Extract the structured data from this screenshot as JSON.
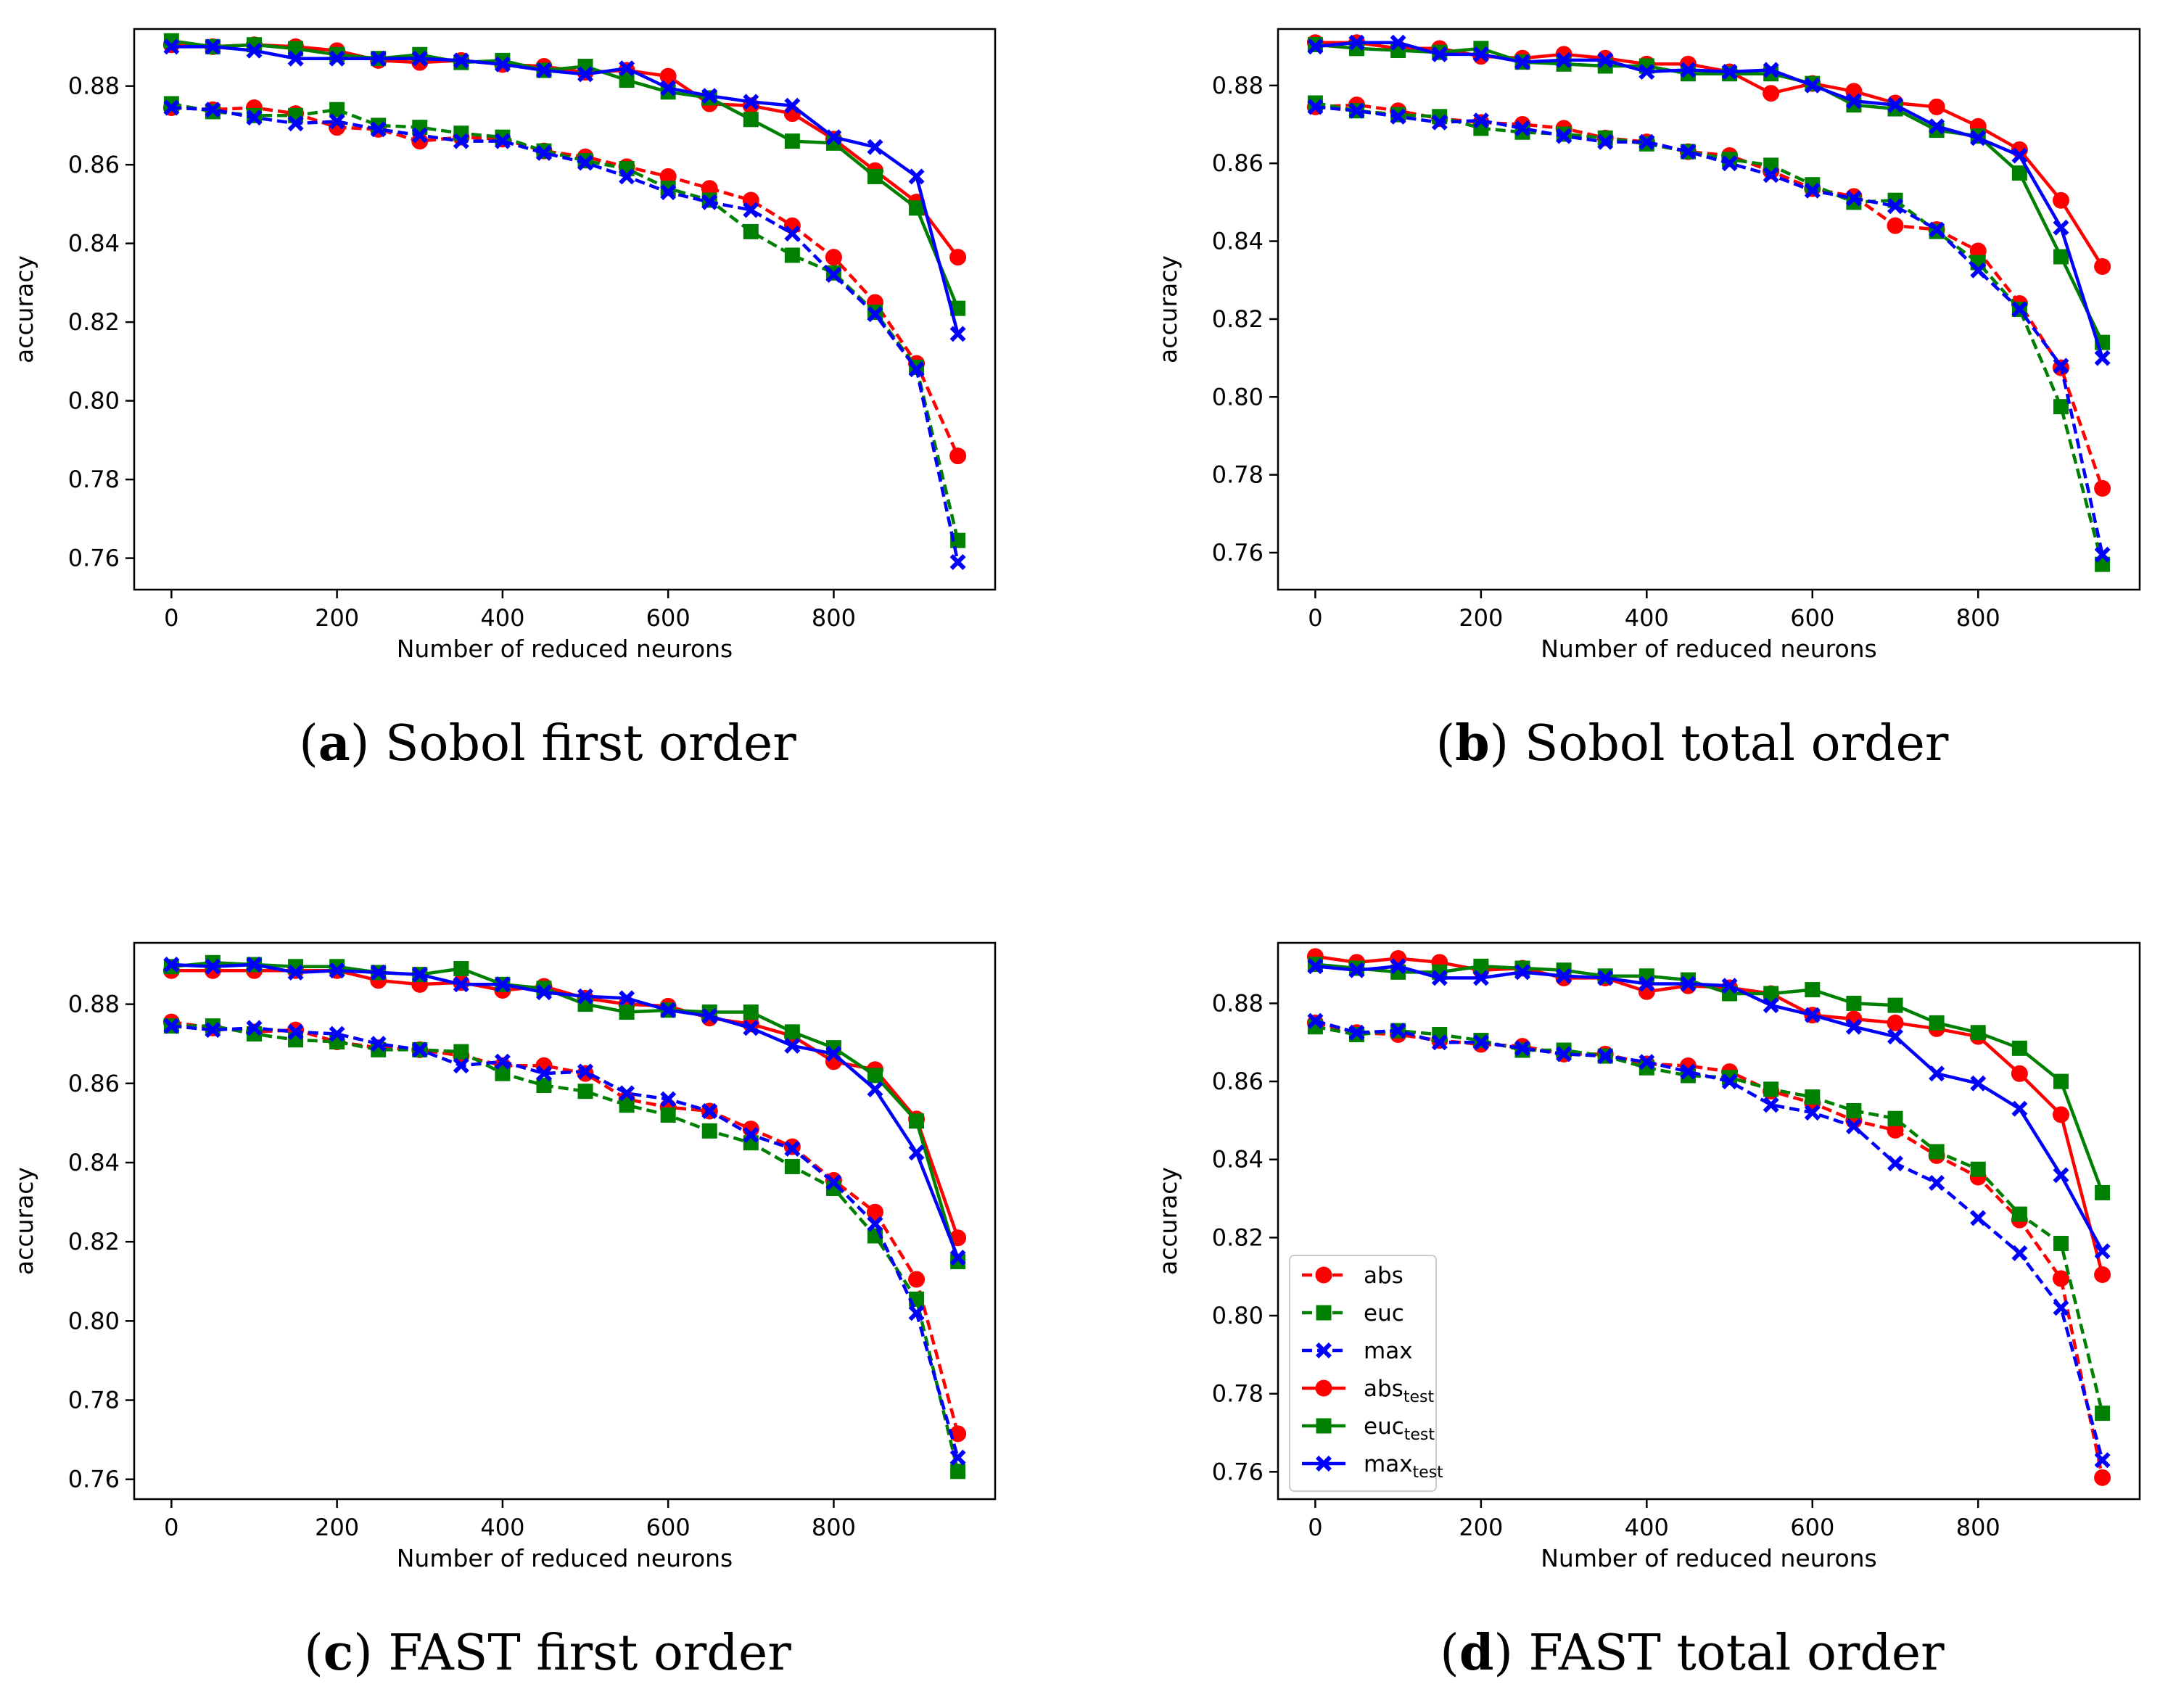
{
  "legend": {
    "entries": [
      {
        "key": "abs",
        "label": "abs",
        "sub": ""
      },
      {
        "key": "euc",
        "label": "euc",
        "sub": ""
      },
      {
        "key": "max",
        "label": "max",
        "sub": ""
      },
      {
        "key": "abs_test",
        "label": "abs",
        "sub": "test"
      },
      {
        "key": "euc_test",
        "label": "euc",
        "sub": "test"
      },
      {
        "key": "max_test",
        "label": "max",
        "sub": "test"
      }
    ]
  },
  "styles": {
    "abs": {
      "color": "#ff0000",
      "dash": true,
      "marker": "circle"
    },
    "euc": {
      "color": "#008000",
      "dash": true,
      "marker": "square"
    },
    "max": {
      "color": "#0000ff",
      "dash": true,
      "marker": "x"
    },
    "abs_test": {
      "color": "#ff0000",
      "dash": false,
      "marker": "circle"
    },
    "euc_test": {
      "color": "#008000",
      "dash": false,
      "marker": "square"
    },
    "max_test": {
      "color": "#0000ff",
      "dash": false,
      "marker": "x"
    }
  },
  "chart_data": [
    {
      "type": "line",
      "caption_letter": "a",
      "caption_text": " Sobol first order",
      "xlabel": "Number of reduced neurons",
      "ylabel": "accuracy",
      "xlim": [
        -45,
        995
      ],
      "ylim": [
        0.752,
        0.8945
      ],
      "xticks": [
        0,
        200,
        400,
        600,
        800
      ],
      "xtick_labels": [
        "0",
        "200",
        "400",
        "600",
        "800"
      ],
      "yticks": [
        0.76,
        0.78,
        0.8,
        0.82,
        0.84,
        0.86,
        0.88
      ],
      "ytick_labels": [
        "0.76",
        "0.78",
        "0.80",
        "0.82",
        "0.84",
        "0.86",
        "0.88"
      ],
      "x": [
        0,
        50,
        100,
        150,
        200,
        250,
        300,
        350,
        400,
        450,
        500,
        550,
        600,
        650,
        700,
        750,
        800,
        850,
        900,
        950
      ],
      "series": [
        {
          "key": "abs",
          "name": "abs",
          "values": [
            0.8745,
            0.874,
            0.8745,
            0.873,
            0.8695,
            0.869,
            0.866,
            0.867,
            0.8665,
            0.8635,
            0.862,
            0.8595,
            0.857,
            0.854,
            0.851,
            0.8445,
            0.8365,
            0.825,
            0.8095,
            0.786
          ]
        },
        {
          "key": "euc",
          "name": "euc",
          "values": [
            0.8755,
            0.8735,
            0.8725,
            0.8725,
            0.874,
            0.87,
            0.8695,
            0.868,
            0.867,
            0.8635,
            0.861,
            0.859,
            0.854,
            0.851,
            0.843,
            0.837,
            0.8325,
            0.8225,
            0.8085,
            0.7645
          ]
        },
        {
          "key": "max",
          "name": "max",
          "values": [
            0.8745,
            0.874,
            0.872,
            0.8705,
            0.871,
            0.869,
            0.8675,
            0.866,
            0.866,
            0.863,
            0.8605,
            0.857,
            0.853,
            0.8505,
            0.8485,
            0.8425,
            0.832,
            0.822,
            0.808,
            0.759
          ]
        },
        {
          "key": "abs_test",
          "name": "abs_test",
          "values": [
            0.8905,
            0.89,
            0.8905,
            0.89,
            0.889,
            0.8865,
            0.886,
            0.8865,
            0.8855,
            0.885,
            0.8835,
            0.884,
            0.8825,
            0.8755,
            0.875,
            0.873,
            0.8665,
            0.8585,
            0.8505,
            0.8365
          ]
        },
        {
          "key": "euc_test",
          "name": "euc_test",
          "values": [
            0.8915,
            0.89,
            0.8905,
            0.8895,
            0.888,
            0.887,
            0.888,
            0.886,
            0.8865,
            0.884,
            0.885,
            0.8815,
            0.8785,
            0.877,
            0.8715,
            0.866,
            0.8655,
            0.857,
            0.849,
            0.8235
          ]
        },
        {
          "key": "max_test",
          "name": "max_test",
          "values": [
            0.89,
            0.89,
            0.889,
            0.887,
            0.887,
            0.887,
            0.887,
            0.8865,
            0.8855,
            0.884,
            0.883,
            0.8845,
            0.8795,
            0.8775,
            0.876,
            0.875,
            0.867,
            0.8645,
            0.857,
            0.817
          ]
        }
      ]
    },
    {
      "type": "line",
      "caption_letter": "b",
      "caption_text": " Sobol total order",
      "xlabel": "Number of reduced neurons",
      "ylabel": "accuracy",
      "xlim": [
        -45,
        995
      ],
      "ylim": [
        0.7505,
        0.8945
      ],
      "xticks": [
        0,
        200,
        400,
        600,
        800
      ],
      "xtick_labels": [
        "0",
        "200",
        "400",
        "600",
        "800"
      ],
      "yticks": [
        0.76,
        0.78,
        0.8,
        0.82,
        0.84,
        0.86,
        0.88
      ],
      "ytick_labels": [
        "0.76",
        "0.78",
        "0.80",
        "0.82",
        "0.84",
        "0.86",
        "0.88"
      ],
      "x": [
        0,
        50,
        100,
        150,
        200,
        250,
        300,
        350,
        400,
        450,
        500,
        550,
        600,
        650,
        700,
        750,
        800,
        850,
        900,
        950
      ],
      "series": [
        {
          "key": "abs",
          "name": "abs",
          "values": [
            0.8745,
            0.875,
            0.8735,
            0.8715,
            0.8705,
            0.87,
            0.869,
            0.8665,
            0.8655,
            0.863,
            0.862,
            0.858,
            0.8535,
            0.8515,
            0.844,
            0.843,
            0.8375,
            0.824,
            0.8075,
            0.7765
          ]
        },
        {
          "key": "euc",
          "name": "euc",
          "values": [
            0.8755,
            0.8735,
            0.8725,
            0.872,
            0.869,
            0.868,
            0.8675,
            0.8665,
            0.865,
            0.863,
            0.861,
            0.8595,
            0.8545,
            0.85,
            0.8505,
            0.8425,
            0.8345,
            0.8225,
            0.7975,
            0.757
          ]
        },
        {
          "key": "max",
          "name": "max",
          "values": [
            0.8745,
            0.8735,
            0.872,
            0.8705,
            0.871,
            0.869,
            0.867,
            0.8655,
            0.8655,
            0.863,
            0.86,
            0.857,
            0.853,
            0.851,
            0.849,
            0.843,
            0.8325,
            0.8225,
            0.808,
            0.7595
          ]
        },
        {
          "key": "abs_test",
          "name": "abs_test",
          "values": [
            0.891,
            0.891,
            0.8895,
            0.8895,
            0.8875,
            0.887,
            0.888,
            0.887,
            0.8855,
            0.8855,
            0.8835,
            0.878,
            0.8805,
            0.8785,
            0.8755,
            0.8745,
            0.8695,
            0.8635,
            0.8505,
            0.8335
          ]
        },
        {
          "key": "euc_test",
          "name": "euc_test",
          "values": [
            0.8905,
            0.8895,
            0.889,
            0.8885,
            0.8895,
            0.886,
            0.8855,
            0.885,
            0.885,
            0.883,
            0.883,
            0.883,
            0.8805,
            0.875,
            0.874,
            0.8685,
            0.867,
            0.8575,
            0.836,
            0.814
          ]
        },
        {
          "key": "max_test",
          "name": "max_test",
          "values": [
            0.89,
            0.891,
            0.891,
            0.888,
            0.888,
            0.886,
            0.8865,
            0.8865,
            0.8835,
            0.884,
            0.8835,
            0.884,
            0.88,
            0.876,
            0.875,
            0.8695,
            0.8665,
            0.862,
            0.8435,
            0.81
          ]
        }
      ]
    },
    {
      "type": "line",
      "caption_letter": "c",
      "caption_text": " FAST first order",
      "xlabel": "Number of reduced neurons",
      "ylabel": "accuracy",
      "xlim": [
        -45,
        995
      ],
      "ylim": [
        0.755,
        0.8955
      ],
      "xticks": [
        0,
        200,
        400,
        600,
        800
      ],
      "xtick_labels": [
        "0",
        "200",
        "400",
        "600",
        "800"
      ],
      "yticks": [
        0.76,
        0.78,
        0.8,
        0.82,
        0.84,
        0.86,
        0.88
      ],
      "ytick_labels": [
        "0.76",
        "0.78",
        "0.80",
        "0.82",
        "0.84",
        "0.86",
        "0.88"
      ],
      "x": [
        0,
        50,
        100,
        150,
        200,
        250,
        300,
        350,
        400,
        450,
        500,
        550,
        600,
        650,
        700,
        750,
        800,
        850,
        900,
        950
      ],
      "series": [
        {
          "key": "abs",
          "name": "abs",
          "values": [
            0.8755,
            0.874,
            0.873,
            0.8735,
            0.8705,
            0.869,
            0.8685,
            0.867,
            0.8645,
            0.8645,
            0.8625,
            0.856,
            0.854,
            0.853,
            0.8485,
            0.844,
            0.8355,
            0.8275,
            0.8105,
            0.7715
          ]
        },
        {
          "key": "euc",
          "name": "euc",
          "values": [
            0.8745,
            0.8745,
            0.8725,
            0.871,
            0.8705,
            0.8685,
            0.8685,
            0.868,
            0.8625,
            0.8595,
            0.858,
            0.8545,
            0.852,
            0.848,
            0.845,
            0.839,
            0.8335,
            0.8215,
            0.8055,
            0.762
          ]
        },
        {
          "key": "max",
          "name": "max",
          "values": [
            0.8745,
            0.8735,
            0.874,
            0.873,
            0.8725,
            0.87,
            0.8685,
            0.8645,
            0.8655,
            0.8625,
            0.863,
            0.8575,
            0.856,
            0.853,
            0.847,
            0.8435,
            0.835,
            0.8245,
            0.802,
            0.7655
          ]
        },
        {
          "key": "abs_test",
          "name": "abs_test",
          "values": [
            0.8885,
            0.8885,
            0.8885,
            0.8885,
            0.8885,
            0.886,
            0.885,
            0.8855,
            0.8835,
            0.8845,
            0.8815,
            0.88,
            0.8795,
            0.8765,
            0.875,
            0.872,
            0.8655,
            0.8635,
            0.851,
            0.821
          ]
        },
        {
          "key": "euc_test",
          "name": "euc_test",
          "values": [
            0.8895,
            0.8905,
            0.89,
            0.8895,
            0.8895,
            0.888,
            0.8875,
            0.889,
            0.885,
            0.884,
            0.88,
            0.878,
            0.8785,
            0.878,
            0.878,
            0.873,
            0.869,
            0.862,
            0.8505,
            0.815
          ]
        },
        {
          "key": "max_test",
          "name": "max_test",
          "values": [
            0.89,
            0.8895,
            0.89,
            0.888,
            0.8885,
            0.888,
            0.8875,
            0.885,
            0.885,
            0.883,
            0.882,
            0.8815,
            0.8785,
            0.877,
            0.874,
            0.8695,
            0.8675,
            0.8585,
            0.8425,
            0.816
          ]
        }
      ]
    },
    {
      "type": "line",
      "caption_letter": "d",
      "caption_text": " FAST total order",
      "xlabel": "Number of reduced neurons",
      "ylabel": "accuracy",
      "xlim": [
        -45,
        995
      ],
      "ylim": [
        0.753,
        0.8955
      ],
      "xticks": [
        0,
        200,
        400,
        600,
        800
      ],
      "xtick_labels": [
        "0",
        "200",
        "400",
        "600",
        "800"
      ],
      "yticks": [
        0.76,
        0.78,
        0.8,
        0.82,
        0.84,
        0.86,
        0.88
      ],
      "ytick_labels": [
        "0.76",
        "0.78",
        "0.80",
        "0.82",
        "0.84",
        "0.86",
        "0.88"
      ],
      "legend_position": "lower-left",
      "x": [
        0,
        50,
        100,
        150,
        200,
        250,
        300,
        350,
        400,
        450,
        500,
        550,
        600,
        650,
        700,
        750,
        800,
        850,
        900,
        950
      ],
      "series": [
        {
          "key": "abs",
          "name": "abs",
          "values": [
            0.875,
            0.8725,
            0.872,
            0.8705,
            0.8695,
            0.869,
            0.867,
            0.867,
            0.8645,
            0.864,
            0.8625,
            0.8575,
            0.8545,
            0.85,
            0.8475,
            0.841,
            0.8355,
            0.8245,
            0.8095,
            0.7585
          ]
        },
        {
          "key": "euc",
          "name": "euc",
          "values": [
            0.874,
            0.872,
            0.873,
            0.872,
            0.8705,
            0.868,
            0.868,
            0.8665,
            0.8635,
            0.8615,
            0.861,
            0.858,
            0.856,
            0.8525,
            0.8505,
            0.842,
            0.8375,
            0.826,
            0.8185,
            0.775
          ]
        },
        {
          "key": "max",
          "name": "max",
          "values": [
            0.8755,
            0.8725,
            0.873,
            0.87,
            0.87,
            0.8685,
            0.867,
            0.8665,
            0.865,
            0.8625,
            0.86,
            0.854,
            0.852,
            0.8485,
            0.839,
            0.834,
            0.825,
            0.816,
            0.802,
            0.763
          ]
        },
        {
          "key": "abs_test",
          "name": "abs_test",
          "values": [
            0.892,
            0.8905,
            0.8915,
            0.8905,
            0.8885,
            0.889,
            0.8865,
            0.8865,
            0.883,
            0.8845,
            0.884,
            0.8825,
            0.877,
            0.876,
            0.875,
            0.8735,
            0.8715,
            0.862,
            0.8515,
            0.8105
          ]
        },
        {
          "key": "euc_test",
          "name": "euc_test",
          "values": [
            0.89,
            0.889,
            0.888,
            0.888,
            0.8895,
            0.889,
            0.8885,
            0.887,
            0.887,
            0.886,
            0.8825,
            0.8825,
            0.8835,
            0.88,
            0.8795,
            0.875,
            0.8725,
            0.8685,
            0.86,
            0.8315
          ]
        },
        {
          "key": "max_test",
          "name": "max_test",
          "values": [
            0.8895,
            0.8885,
            0.8895,
            0.8865,
            0.8865,
            0.888,
            0.887,
            0.8865,
            0.885,
            0.885,
            0.8845,
            0.8795,
            0.877,
            0.874,
            0.8715,
            0.862,
            0.8595,
            0.853,
            0.836,
            0.8165
          ]
        }
      ]
    }
  ]
}
